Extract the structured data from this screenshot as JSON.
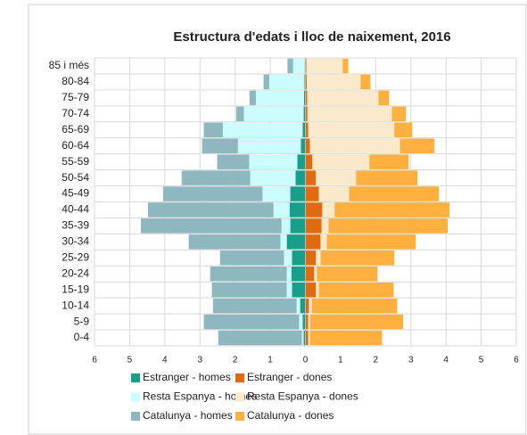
{
  "chart_data": {
    "type": "population-pyramid",
    "title": "Estructura d'edats i lloc de naixement, 2016",
    "categories": [
      "0-4",
      "5-9",
      "10-14",
      "15-19",
      "20-24",
      "25-29",
      "30-34",
      "35-39",
      "40-44",
      "45-49",
      "50-54",
      "55-59",
      "60-64",
      "65-69",
      "70-74",
      "75-79",
      "80-84",
      "85 i més"
    ],
    "series": [
      {
        "name": "Estranger - homes",
        "color": "#1a9e8c",
        "values": [
          -0.05,
          -0.08,
          -0.15,
          -0.38,
          -0.4,
          -0.38,
          -0.53,
          -0.43,
          -0.45,
          -0.43,
          -0.28,
          -0.23,
          -0.13,
          -0.08,
          -0.05,
          -0.04,
          -0.03,
          -0.02
        ]
      },
      {
        "name": "Estranger - dones",
        "color": "#e06a10",
        "values": [
          0.08,
          0.08,
          0.1,
          0.3,
          0.25,
          0.3,
          0.43,
          0.46,
          0.48,
          0.38,
          0.3,
          0.2,
          0.13,
          0.08,
          0.06,
          0.05,
          0.04,
          0.03
        ]
      },
      {
        "name": "Resta Espanya - homes",
        "color": "#ccfcfc",
        "values": [
          -0.05,
          -0.1,
          -0.1,
          -0.15,
          -0.13,
          -0.23,
          -0.18,
          -0.25,
          -0.46,
          -0.79,
          -1.29,
          -1.37,
          -1.79,
          -2.27,
          -1.7,
          -1.37,
          -1.0,
          -0.33
        ]
      },
      {
        "name": "Resta Espanya - dones",
        "color": "#faeacb",
        "values": [
          0.05,
          0.05,
          0.08,
          0.08,
          0.08,
          0.13,
          0.18,
          0.2,
          0.35,
          0.86,
          1.14,
          1.62,
          2.56,
          2.45,
          2.4,
          2.03,
          1.53,
          1.03
        ]
      },
      {
        "name": "Catalunya - homes",
        "color": "#8fb7c0",
        "values": [
          -2.38,
          -2.71,
          -2.38,
          -2.13,
          -2.18,
          -1.82,
          -2.61,
          -4.0,
          -3.57,
          -2.83,
          -1.95,
          -0.91,
          -1.02,
          -0.54,
          -0.22,
          -0.18,
          -0.16,
          -0.16
        ]
      },
      {
        "name": "Catalunya - dones",
        "color": "#fbb040",
        "values": [
          2.05,
          2.65,
          2.43,
          2.13,
          1.72,
          2.1,
          2.53,
          3.39,
          3.27,
          2.56,
          1.75,
          1.12,
          0.98,
          0.51,
          0.4,
          0.3,
          0.28,
          0.16
        ]
      }
    ],
    "xlim": [
      -6,
      6
    ],
    "xticks": [
      {
        "value": -6,
        "label": "6"
      },
      {
        "value": -5,
        "label": "5"
      },
      {
        "value": -4,
        "label": "4"
      },
      {
        "value": -3,
        "label": "3"
      },
      {
        "value": -2,
        "label": "2"
      },
      {
        "value": -1,
        "label": "1"
      },
      0,
      1,
      2,
      3,
      4,
      5,
      6
    ],
    "grid": true
  }
}
